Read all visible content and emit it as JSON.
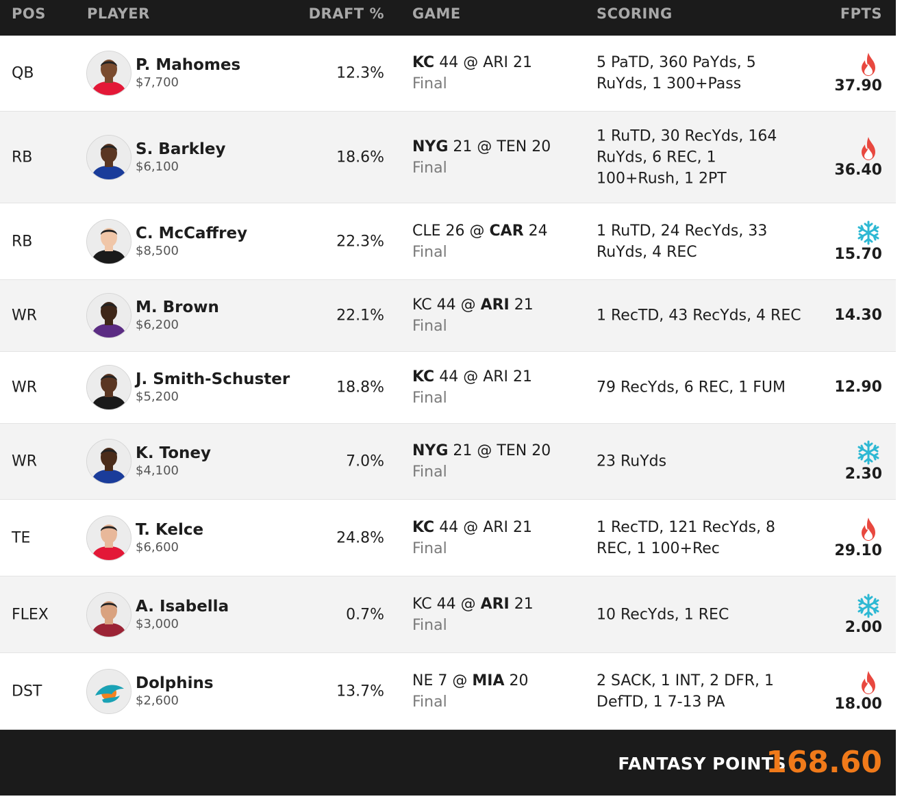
{
  "header": {
    "pos": "POS",
    "player": "PLAYER",
    "draft": "DRAFT %",
    "game": "GAME",
    "scoring": "SCORING",
    "fpts": "FPTS"
  },
  "colors": {
    "hot": "#e8483f",
    "cold": "#2db8d3",
    "accent": "#f07a1a"
  },
  "rows": [
    {
      "pos": "QB",
      "name": "P. Mahomes",
      "salary": "$7,700",
      "draft": "12.3%",
      "game": {
        "away": "KC",
        "away_score": "44",
        "at": "@",
        "home": "ARI",
        "home_score": "21",
        "bold": "away",
        "status": "Final"
      },
      "scoring": "5 PaTD, 360 PaYds, 5 RuYds, 1 300+Pass",
      "fpts": "37.90",
      "icon": "flame-icon"
    },
    {
      "pos": "RB",
      "name": "S. Barkley",
      "salary": "$6,100",
      "draft": "18.6%",
      "game": {
        "away": "NYG",
        "away_score": "21",
        "at": "@",
        "home": "TEN",
        "home_score": "20",
        "bold": "away",
        "status": "Final"
      },
      "scoring": "1 RuTD, 30 RecYds, 164 RuYds, 6 REC, 1 100+Rush, 1 2PT",
      "fpts": "36.40",
      "icon": "flame-icon"
    },
    {
      "pos": "RB",
      "name": "C. McCaffrey",
      "salary": "$8,500",
      "draft": "22.3%",
      "game": {
        "away": "CLE",
        "away_score": "26",
        "at": "@",
        "home": "CAR",
        "home_score": "24",
        "bold": "home",
        "status": "Final"
      },
      "scoring": "1 RuTD, 24 RecYds, 33 RuYds, 4 REC",
      "fpts": "15.70",
      "icon": "snowflake-icon"
    },
    {
      "pos": "WR",
      "name": "M. Brown",
      "salary": "$6,200",
      "draft": "22.1%",
      "game": {
        "away": "KC",
        "away_score": "44",
        "at": "@",
        "home": "ARI",
        "home_score": "21",
        "bold": "home",
        "status": "Final"
      },
      "scoring": "1 RecTD, 43 RecYds, 4 REC",
      "fpts": "14.30",
      "icon": ""
    },
    {
      "pos": "WR",
      "name": "J. Smith-Schuster",
      "salary": "$5,200",
      "draft": "18.8%",
      "game": {
        "away": "KC",
        "away_score": "44",
        "at": "@",
        "home": "ARI",
        "home_score": "21",
        "bold": "away",
        "status": "Final"
      },
      "scoring": "79 RecYds, 6 REC, 1 FUM",
      "fpts": "12.90",
      "icon": ""
    },
    {
      "pos": "WR",
      "name": "K. Toney",
      "salary": "$4,100",
      "draft": "7.0%",
      "game": {
        "away": "NYG",
        "away_score": "21",
        "at": "@",
        "home": "TEN",
        "home_score": "20",
        "bold": "away",
        "status": "Final"
      },
      "scoring": "23 RuYds",
      "fpts": "2.30",
      "icon": "snowflake-icon"
    },
    {
      "pos": "TE",
      "name": "T. Kelce",
      "salary": "$6,600",
      "draft": "24.8%",
      "game": {
        "away": "KC",
        "away_score": "44",
        "at": "@",
        "home": "ARI",
        "home_score": "21",
        "bold": "away",
        "status": "Final"
      },
      "scoring": "1 RecTD, 121 RecYds, 8 REC, 1 100+Rec",
      "fpts": "29.10",
      "icon": "flame-icon"
    },
    {
      "pos": "FLEX",
      "name": "A. Isabella",
      "salary": "$3,000",
      "draft": "0.7%",
      "game": {
        "away": "KC",
        "away_score": "44",
        "at": "@",
        "home": "ARI",
        "home_score": "21",
        "bold": "home",
        "status": "Final"
      },
      "scoring": "10 RecYds, 1 REC",
      "fpts": "2.00",
      "icon": "snowflake-icon"
    },
    {
      "pos": "DST",
      "name": "Dolphins",
      "salary": "$2,600",
      "draft": "13.7%",
      "game": {
        "away": "NE",
        "away_score": "7",
        "at": "@",
        "home": "MIA",
        "home_score": "20",
        "bold": "home",
        "status": "Final"
      },
      "scoring": "2 SACK, 1 INT, 2 DFR, 1 DefTD, 1 7-13 PA",
      "fpts": "18.00",
      "icon": "flame-icon"
    }
  ],
  "footer": {
    "label": "FANTASY POINTS",
    "total": "168.60"
  }
}
